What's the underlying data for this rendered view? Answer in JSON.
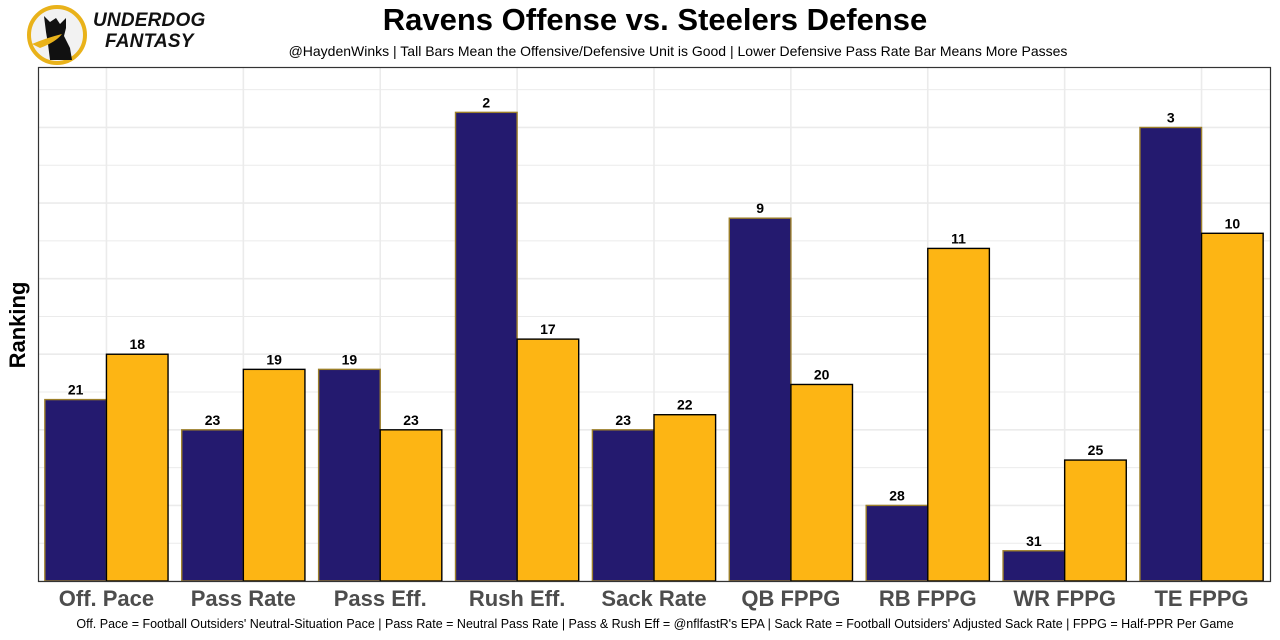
{
  "header": {
    "brand_line1": "UNDERDOG",
    "brand_line2": "FANTASY",
    "logo_icon": "dog-silhouette-icon"
  },
  "colors": {
    "offense": "#241A6F",
    "offense_outline": "#9C7F2A",
    "defense": "#FDB514",
    "defense_outline": "#000000",
    "grid": "#EBEBEB",
    "logo_gold": "#E9B21A"
  },
  "chart_data": {
    "type": "bar",
    "title": "Ravens Offense vs. Steelers Defense",
    "subtitle": "@HaydenWinks | Tall Bars Mean the Offensive/Defensive Unit is Good | Lower Defensive Pass Rate Bar Means More Passes",
    "xlabel": "",
    "ylabel": "Ranking",
    "caption": "Off. Pace = Football Outsiders' Neutral-Situation Pace | Pass Rate = Neutral Pass Rate | Pass & Rush Eff = @nflfastR's EPA | Sack Rate = Football Outsiders' Adjusted Sack Rate | FPPG = Half-PPR Per Game",
    "categories": [
      "Off. Pace",
      "Pass Rate",
      "Pass Eff.",
      "Rush Eff.",
      "Sack Rate",
      "QB FPPG",
      "RB FPPG",
      "WR FPPG",
      "TE FPPG"
    ],
    "series": [
      {
        "name": "Ravens Offense",
        "values": [
          21,
          23,
          19,
          2,
          23,
          9,
          28,
          31,
          3
        ]
      },
      {
        "name": "Steelers Defense",
        "values": [
          18,
          19,
          23,
          17,
          22,
          20,
          11,
          25,
          10
        ]
      }
    ],
    "value_transform": "bar height = 33 - ranking (rank 1 is tallest)",
    "ylim": [
      0,
      34
    ],
    "y_tick_labels_shown": false,
    "grid": true,
    "legend": "none"
  }
}
